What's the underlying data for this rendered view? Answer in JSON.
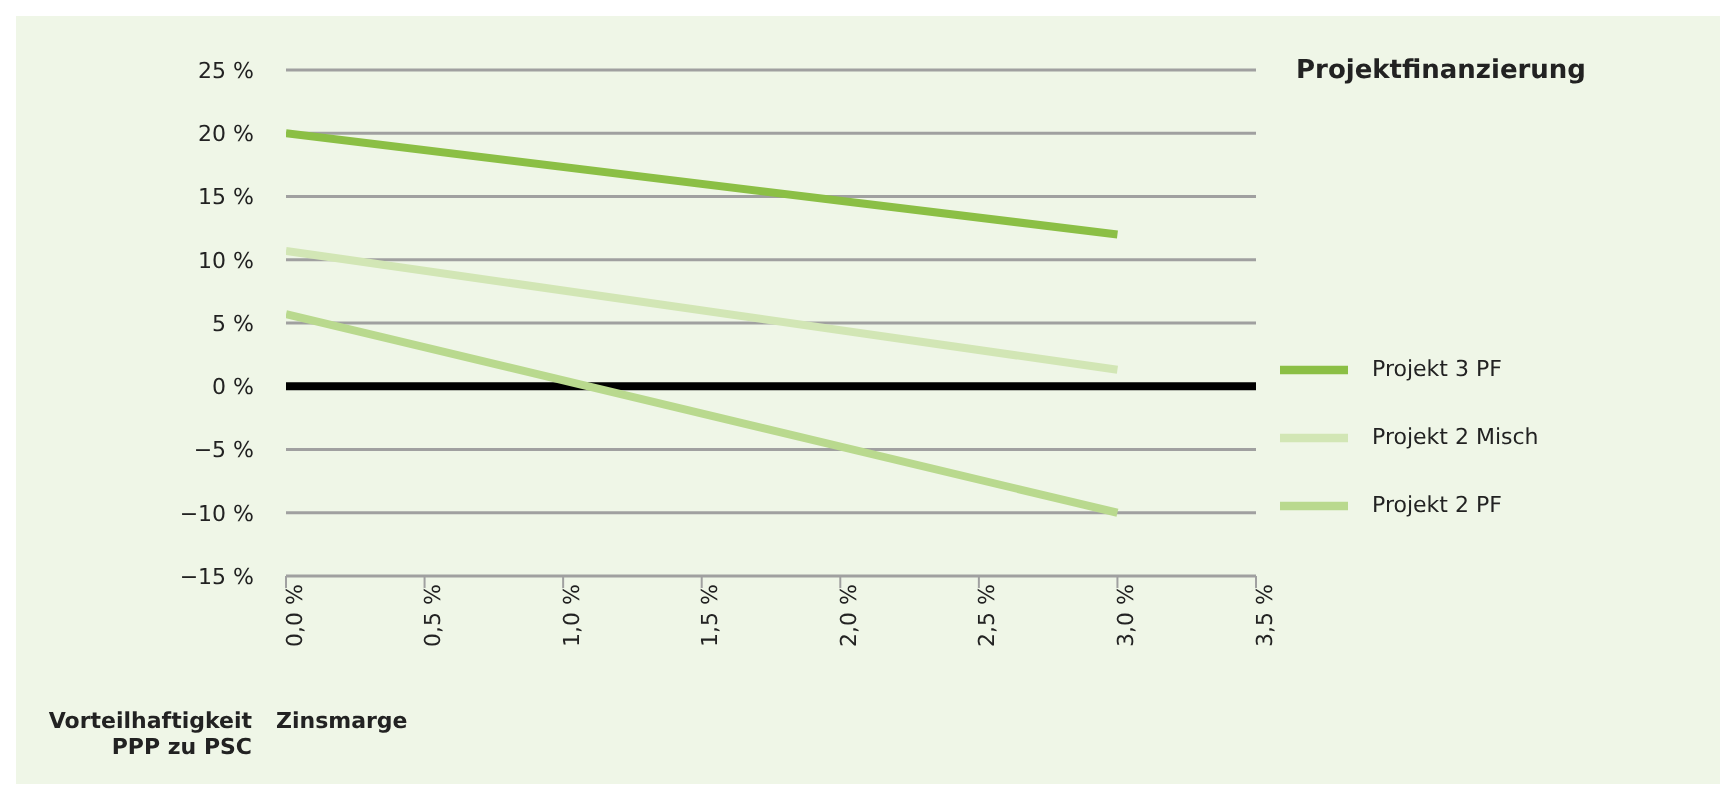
{
  "chart_data": {
    "type": "line",
    "title": "Projektfinanzierung",
    "xlabel": "Zinsmarge",
    "ylabel": "Vorteilhaftigkeit PPP zu PSC",
    "x": [
      0,
      3
    ],
    "series": [
      {
        "name": "Projekt 3 PF",
        "color": "#8bbf45",
        "values": [
          20,
          12
        ]
      },
      {
        "name": "Projekt 2 Misch",
        "color": "#d2e6b5",
        "values": [
          10.7,
          1.3
        ]
      },
      {
        "name": "Projekt 2 PF",
        "color": "#b9d98e",
        "values": [
          5.7,
          -10
        ]
      }
    ],
    "xlim": [
      0,
      3.5
    ],
    "xticks": [
      {
        "value": 0,
        "label": "0,0 %"
      },
      {
        "value": 0.5,
        "label": "0,5 %"
      },
      {
        "value": 1,
        "label": "1,0 %"
      },
      {
        "value": 1.5,
        "label": "1,5 %"
      },
      {
        "value": 2,
        "label": "2,0 %"
      },
      {
        "value": 2.5,
        "label": "2,5 %"
      },
      {
        "value": 3,
        "label": "3,0 %"
      },
      {
        "value": 3.5,
        "label": "3,5 %"
      }
    ],
    "ylim": [
      -15,
      25
    ],
    "yticks": [
      {
        "value": -15,
        "label": "−15 %"
      },
      {
        "value": -10,
        "label": "−10 %"
      },
      {
        "value": -5,
        "label": "−5 %"
      },
      {
        "value": 0,
        "label": "0 %"
      },
      {
        "value": 5,
        "label": "5 %"
      },
      {
        "value": 10,
        "label": "10 %"
      },
      {
        "value": 15,
        "label": "15 %"
      },
      {
        "value": 20,
        "label": "20 %"
      },
      {
        "value": 25,
        "label": "25 %"
      }
    ],
    "ref_lines": [
      {
        "axis": "y",
        "value": 0,
        "color": "#000000"
      }
    ],
    "grid": "y",
    "legend": "right",
    "marker": "none",
    "line_style": "solid"
  }
}
